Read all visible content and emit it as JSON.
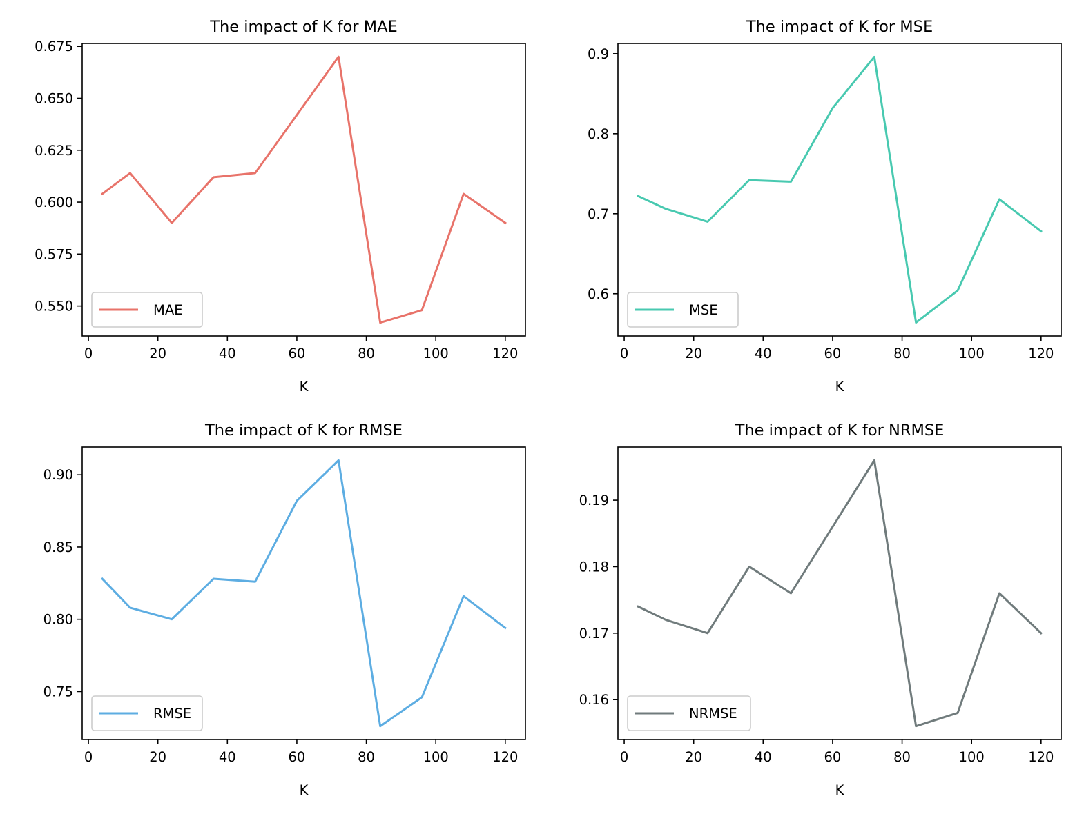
{
  "chart_data": [
    {
      "type": "line",
      "title": "The impact of K for MAE",
      "xlabel": "K",
      "ylabel": "",
      "x": [
        4,
        12,
        24,
        36,
        48,
        60,
        72,
        84,
        96,
        108,
        120
      ],
      "series": [
        {
          "name": "MAE",
          "color": "#e8736a",
          "values": [
            0.604,
            0.614,
            0.59,
            0.612,
            0.614,
            0.642,
            0.67,
            0.542,
            0.548,
            0.604,
            0.59
          ]
        }
      ],
      "xlim": [
        -1.8,
        125.8
      ],
      "ylim": [
        0.5356,
        0.6764
      ],
      "xticks": [
        0,
        20,
        40,
        60,
        80,
        100,
        120
      ],
      "xtick_labels": [
        "0",
        "20",
        "40",
        "60",
        "80",
        "100",
        "120"
      ],
      "yticks": [
        0.55,
        0.575,
        0.6,
        0.625,
        0.65,
        0.675
      ],
      "ytick_labels": [
        "0.550",
        "0.575",
        "0.600",
        "0.625",
        "0.650",
        "0.675"
      ],
      "legend": "lower-left",
      "grid": false
    },
    {
      "type": "line",
      "title": "The impact of K for MSE",
      "xlabel": "K",
      "ylabel": "",
      "x": [
        4,
        12,
        24,
        36,
        48,
        60,
        72,
        84,
        96,
        108,
        120
      ],
      "series": [
        {
          "name": "MSE",
          "color": "#48c9b0",
          "values": [
            0.722,
            0.706,
            0.69,
            0.742,
            0.74,
            0.832,
            0.896,
            0.564,
            0.604,
            0.718,
            0.678
          ]
        }
      ],
      "xlim": [
        -1.8,
        125.8
      ],
      "ylim": [
        0.5472,
        0.9128
      ],
      "xticks": [
        0,
        20,
        40,
        60,
        80,
        100,
        120
      ],
      "xtick_labels": [
        "0",
        "20",
        "40",
        "60",
        "80",
        "100",
        "120"
      ],
      "yticks": [
        0.6,
        0.7,
        0.8,
        0.9
      ],
      "ytick_labels": [
        "0.6",
        "0.7",
        "0.8",
        "0.9"
      ],
      "legend": "lower-left",
      "grid": false
    },
    {
      "type": "line",
      "title": "The impact of K for RMSE",
      "xlabel": "K",
      "ylabel": "",
      "x": [
        4,
        12,
        24,
        36,
        48,
        60,
        72,
        84,
        96,
        108,
        120
      ],
      "series": [
        {
          "name": "RMSE",
          "color": "#5dade2",
          "values": [
            0.828,
            0.808,
            0.8,
            0.828,
            0.826,
            0.882,
            0.91,
            0.726,
            0.746,
            0.816,
            0.794
          ]
        }
      ],
      "xlim": [
        -1.8,
        125.8
      ],
      "ylim": [
        0.7168,
        0.9192
      ],
      "xticks": [
        0,
        20,
        40,
        60,
        80,
        100,
        120
      ],
      "xtick_labels": [
        "0",
        "20",
        "40",
        "60",
        "80",
        "100",
        "120"
      ],
      "yticks": [
        0.75,
        0.8,
        0.85,
        0.9
      ],
      "ytick_labels": [
        "0.75",
        "0.80",
        "0.85",
        "0.90"
      ],
      "legend": "lower-left",
      "grid": false
    },
    {
      "type": "line",
      "title": "The impact of K for NRMSE",
      "xlabel": "K",
      "ylabel": "",
      "x": [
        4,
        12,
        24,
        36,
        48,
        60,
        72,
        84,
        96,
        108,
        120
      ],
      "series": [
        {
          "name": "NRMSE",
          "color": "#707b7c",
          "values": [
            0.174,
            0.172,
            0.17,
            0.18,
            0.176,
            0.186,
            0.196,
            0.156,
            0.158,
            0.176,
            0.17
          ]
        }
      ],
      "xlim": [
        -1.8,
        125.8
      ],
      "ylim": [
        0.154,
        0.198
      ],
      "xticks": [
        0,
        20,
        40,
        60,
        80,
        100,
        120
      ],
      "xtick_labels": [
        "0",
        "20",
        "40",
        "60",
        "80",
        "100",
        "120"
      ],
      "yticks": [
        0.16,
        0.17,
        0.18,
        0.19
      ],
      "ytick_labels": [
        "0.16",
        "0.17",
        "0.18",
        "0.19"
      ],
      "legend": "lower-left",
      "grid": false
    }
  ]
}
